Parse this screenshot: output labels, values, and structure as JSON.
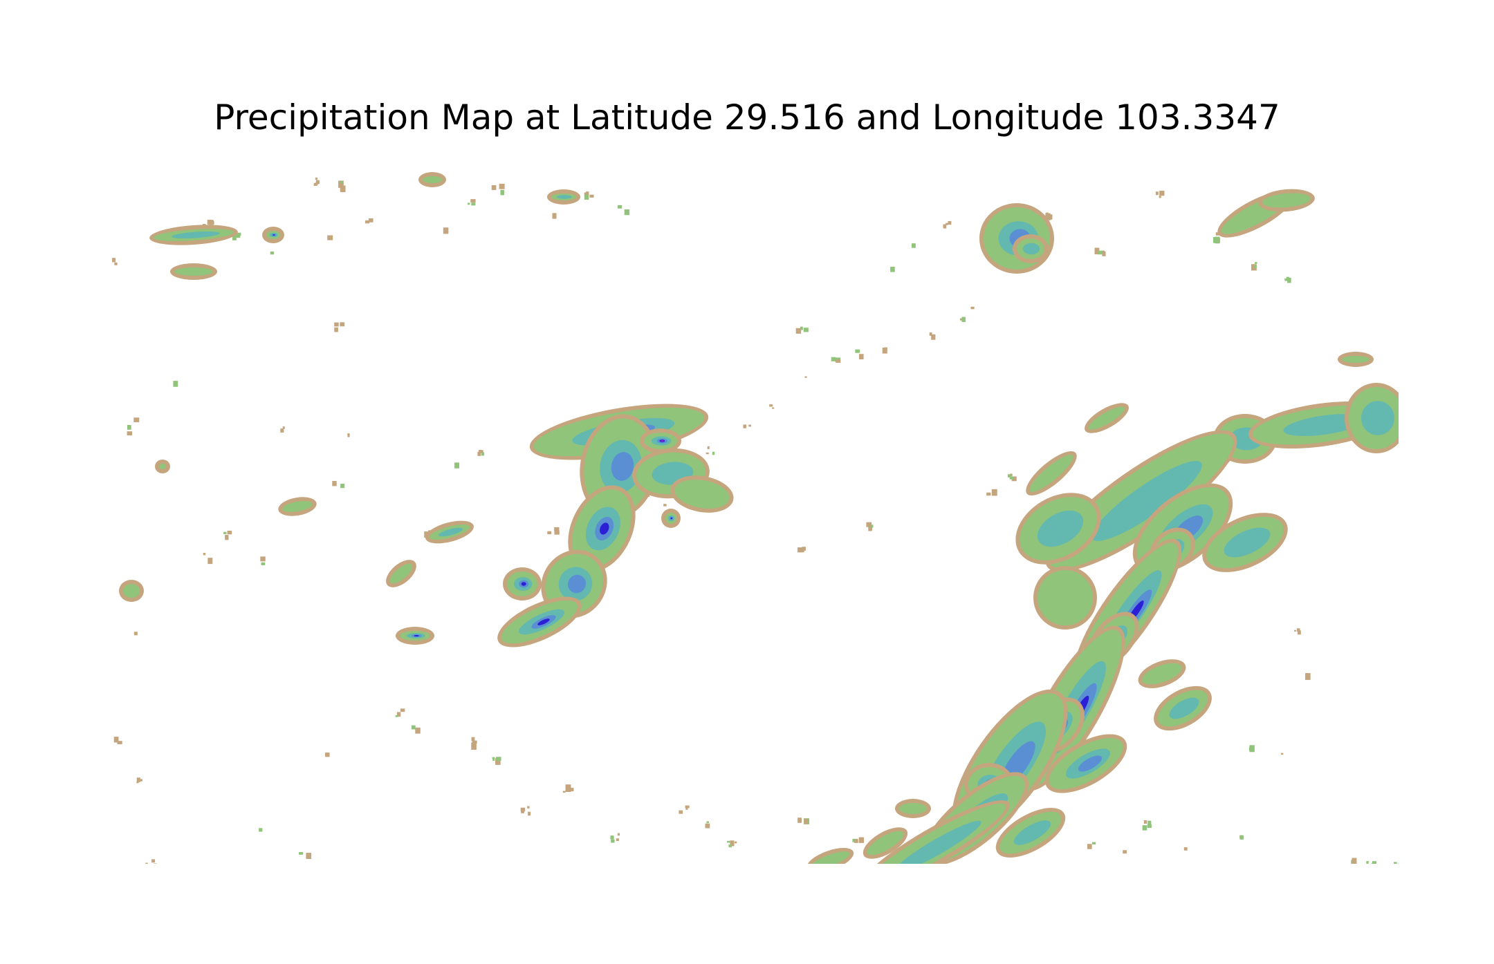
{
  "title": "Precipitation Map at Latitude 29.516 and Longitude 103.3347",
  "map": {
    "type": "precipitation-raster",
    "axes_visible": false,
    "colormap": {
      "no_data": "#ffffff",
      "edge": "#c4a57e",
      "light": "#8fc47a",
      "moderate": "#63b8b0",
      "heavy": "#5a8fd4",
      "very_heavy": "#2c1fd6",
      "extreme": "#9a1fc9",
      "peak": "#d0246e"
    }
  }
}
